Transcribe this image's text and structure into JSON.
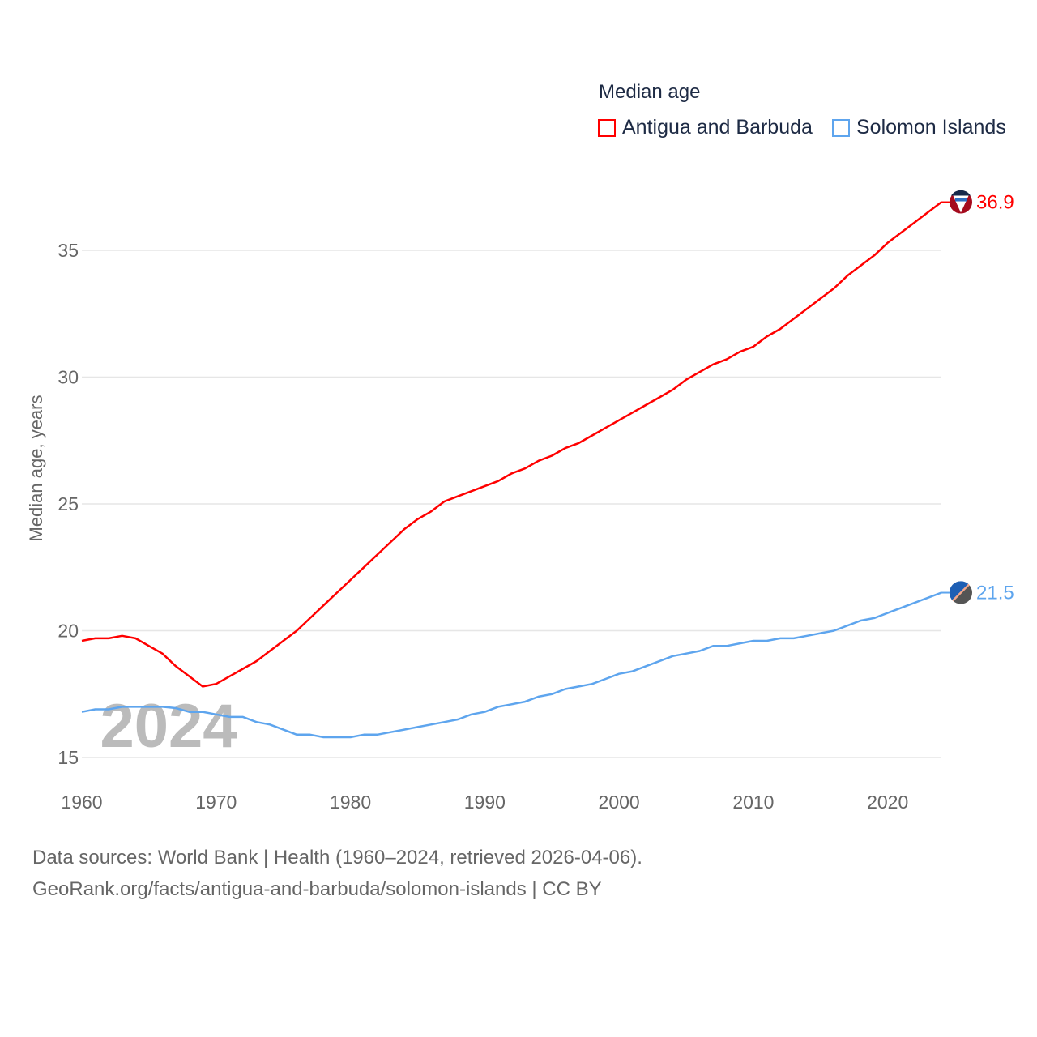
{
  "chart_data": {
    "type": "line",
    "legend_title": "Median age",
    "ylabel": "Median age, years",
    "xlabel": "",
    "ylim": [
      14.5,
      38
    ],
    "xlim": [
      1960,
      2024
    ],
    "yticks": [
      "15",
      "20",
      "25",
      "30",
      "35"
    ],
    "xticks": [
      "1960",
      "1970",
      "1980",
      "1990",
      "2000",
      "2010",
      "2020"
    ],
    "watermark_year": "2024",
    "legend_placement": "top-right",
    "grid": true,
    "x": [
      1960,
      1961,
      1962,
      1963,
      1964,
      1965,
      1966,
      1967,
      1968,
      1969,
      1970,
      1971,
      1972,
      1973,
      1974,
      1975,
      1976,
      1977,
      1978,
      1979,
      1980,
      1981,
      1982,
      1983,
      1984,
      1985,
      1986,
      1987,
      1988,
      1989,
      1990,
      1991,
      1992,
      1993,
      1994,
      1995,
      1996,
      1997,
      1998,
      1999,
      2000,
      2001,
      2002,
      2003,
      2004,
      2005,
      2006,
      2007,
      2008,
      2009,
      2010,
      2011,
      2012,
      2013,
      2014,
      2015,
      2016,
      2017,
      2018,
      2019,
      2020,
      2021,
      2022,
      2023,
      2024
    ],
    "series": [
      {
        "name": "Antigua and Barbuda",
        "color": "#ff0000",
        "end_label": "36.9",
        "values": [
          19.6,
          19.7,
          19.7,
          19.8,
          19.7,
          19.4,
          19.1,
          18.6,
          18.2,
          17.8,
          17.9,
          18.2,
          18.5,
          18.8,
          19.2,
          19.6,
          20.0,
          20.5,
          21.0,
          21.5,
          22.0,
          22.5,
          23.0,
          23.5,
          24.0,
          24.4,
          24.7,
          25.1,
          25.3,
          25.5,
          25.7,
          25.9,
          26.2,
          26.4,
          26.7,
          26.9,
          27.2,
          27.4,
          27.7,
          28.0,
          28.3,
          28.6,
          28.9,
          29.2,
          29.5,
          29.9,
          30.2,
          30.5,
          30.7,
          31.0,
          31.2,
          31.6,
          31.9,
          32.3,
          32.7,
          33.1,
          33.5,
          34.0,
          34.4,
          34.8,
          35.3,
          35.7,
          36.1,
          36.5,
          36.9
        ]
      },
      {
        "name": "Solomon Islands",
        "color": "#5ea5ee",
        "end_label": "21.5",
        "values": [
          16.8,
          16.9,
          16.9,
          17.0,
          17.0,
          17.0,
          17.0,
          16.95,
          16.8,
          16.8,
          16.7,
          16.6,
          16.6,
          16.4,
          16.3,
          16.1,
          15.9,
          15.9,
          15.8,
          15.8,
          15.8,
          15.9,
          15.9,
          16.0,
          16.1,
          16.2,
          16.3,
          16.4,
          16.5,
          16.7,
          16.8,
          17.0,
          17.1,
          17.2,
          17.4,
          17.5,
          17.7,
          17.8,
          17.9,
          18.1,
          18.3,
          18.4,
          18.6,
          18.8,
          19.0,
          19.1,
          19.2,
          19.4,
          19.4,
          19.5,
          19.6,
          19.6,
          19.7,
          19.7,
          19.8,
          19.9,
          20.0,
          20.2,
          20.4,
          20.5,
          20.7,
          20.9,
          21.1,
          21.3,
          21.5
        ]
      }
    ]
  },
  "footer": {
    "line1": "Data sources: World Bank | Health (1960–2024, retrieved 2026-04-06).",
    "line2": "GeoRank.org/facts/antigua-and-barbuda/solomon-islands | CC BY"
  }
}
